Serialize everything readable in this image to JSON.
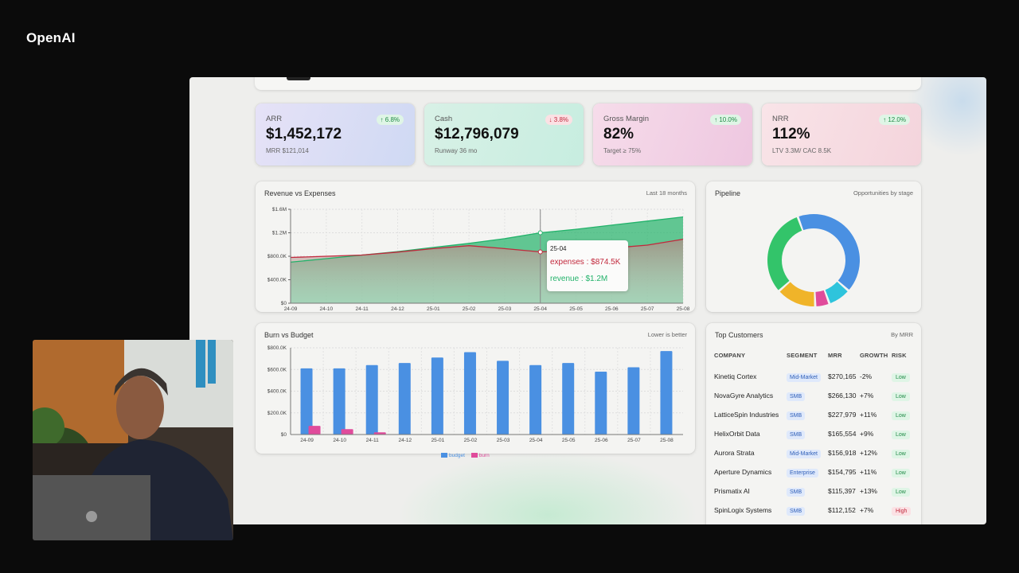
{
  "brand": "OpenAI",
  "kpis": [
    {
      "label": "ARR",
      "value": "$1,452,172",
      "sub": "MRR $121,014",
      "delta": "6.8%",
      "direction": "up",
      "gradient": [
        "#e6e2f7",
        "#cfd9f3"
      ]
    },
    {
      "label": "Cash",
      "value": "$12,796,079",
      "sub": "Runway 36 mo",
      "delta": "3.8%",
      "direction": "down",
      "gradient": [
        "#d8f1e6",
        "#c7ede0"
      ]
    },
    {
      "label": "Gross Margin",
      "value": "82%",
      "sub": "Target ≥ 75%",
      "delta": "10.0%",
      "direction": "up",
      "gradient": [
        "#f6dcea",
        "#eec7e0"
      ]
    },
    {
      "label": "NRR",
      "value": "112%",
      "sub": "LTV 3.3M/ CAC 8.5K",
      "delta": "12.0%",
      "direction": "up",
      "gradient": [
        "#f9e4e8",
        "#f4d4dc"
      ]
    }
  ],
  "revenue_panel": {
    "title": "Revenue vs Expenses",
    "note": "Last 18 months",
    "tooltip": {
      "period": "25-04",
      "expenses": "expenses : $874.5K",
      "revenue": "revenue : $1.2M"
    }
  },
  "pipeline_panel": {
    "title": "Pipeline",
    "note": "Opportunities by stage"
  },
  "burn_panel": {
    "title": "Burn vs Budget",
    "note": "Lower is better",
    "legend": [
      "budget",
      "burn"
    ]
  },
  "customers_panel": {
    "title": "Top Customers",
    "note": "By MRR",
    "headers": [
      "COMPANY",
      "SEGMENT",
      "MRR",
      "GROWTH",
      "RISK"
    ],
    "rows": [
      {
        "company": "Kinetiq Cortex",
        "segment": "Mid-Market",
        "mrr": "$270,165",
        "growth": "-2%",
        "risk": "Low"
      },
      {
        "company": "NovaGyre Analytics",
        "segment": "SMB",
        "mrr": "$266,130",
        "growth": "+7%",
        "risk": "Low"
      },
      {
        "company": "LatticeSpin Industries",
        "segment": "SMB",
        "mrr": "$227,979",
        "growth": "+11%",
        "risk": "Low"
      },
      {
        "company": "HelixOrbit Data",
        "segment": "SMB",
        "mrr": "$165,554",
        "growth": "+9%",
        "risk": "Low"
      },
      {
        "company": "Aurora Strata",
        "segment": "Mid-Market",
        "mrr": "$156,918",
        "growth": "+12%",
        "risk": "Low"
      },
      {
        "company": "Aperture Dynamics",
        "segment": "Enterprise",
        "mrr": "$154,795",
        "growth": "+11%",
        "risk": "Low"
      },
      {
        "company": "Prismatix AI",
        "segment": "SMB",
        "mrr": "$115,397",
        "growth": "+13%",
        "risk": "Low"
      },
      {
        "company": "SpinLogix Systems",
        "segment": "SMB",
        "mrr": "$112,152",
        "growth": "+7%",
        "risk": "High"
      }
    ]
  },
  "chart_data": [
    {
      "type": "area",
      "title": "Revenue vs Expenses",
      "x": [
        "24-09",
        "24-10",
        "24-11",
        "24-12",
        "25-01",
        "25-02",
        "25-03",
        "25-04",
        "25-05",
        "25-06",
        "25-07",
        "25-08"
      ],
      "yticks": [
        "$0",
        "$400.0K",
        "$800.0K",
        "$1.2M",
        "$1.6M"
      ],
      "ylim": [
        0,
        1600000
      ],
      "series": [
        {
          "name": "revenue",
          "color": "#22b26a",
          "values": [
            700000,
            760000,
            820000,
            880000,
            950000,
            1020000,
            1100000,
            1200000,
            1260000,
            1330000,
            1400000,
            1470000
          ]
        },
        {
          "name": "expenses",
          "color": "#c2283c",
          "values": [
            780000,
            800000,
            820000,
            870000,
            930000,
            980000,
            930000,
            874500,
            900000,
            940000,
            990000,
            1090000
          ]
        }
      ],
      "grid": true
    },
    {
      "type": "pie",
      "title": "Pipeline",
      "slices": [
        {
          "value": 42,
          "color": "#4a90e2"
        },
        {
          "value": 8,
          "color": "#2ec4dc"
        },
        {
          "value": 5,
          "color": "#e04b9b"
        },
        {
          "value": 14,
          "color": "#f0b429"
        },
        {
          "value": 31,
          "color": "#33c46a"
        }
      ]
    },
    {
      "type": "bar",
      "title": "Burn vs Budget",
      "categories": [
        "24-09",
        "24-10",
        "24-11",
        "24-12",
        "25-01",
        "25-02",
        "25-03",
        "25-04",
        "25-05",
        "25-06",
        "25-07",
        "25-08"
      ],
      "yticks": [
        "$0",
        "$200.0K",
        "$400.0K",
        "$600.0K",
        "$800.0K"
      ],
      "ylim": [
        0,
        800000
      ],
      "series": [
        {
          "name": "budget",
          "color": "#4a90e2",
          "values": [
            610000,
            610000,
            640000,
            660000,
            710000,
            760000,
            680000,
            640000,
            660000,
            580000,
            620000,
            770000
          ]
        },
        {
          "name": "burn",
          "color": "#e04b9b",
          "values": [
            80000,
            50000,
            20000,
            0,
            0,
            0,
            0,
            0,
            0,
            0,
            0,
            0
          ]
        }
      ],
      "grid": true
    }
  ]
}
